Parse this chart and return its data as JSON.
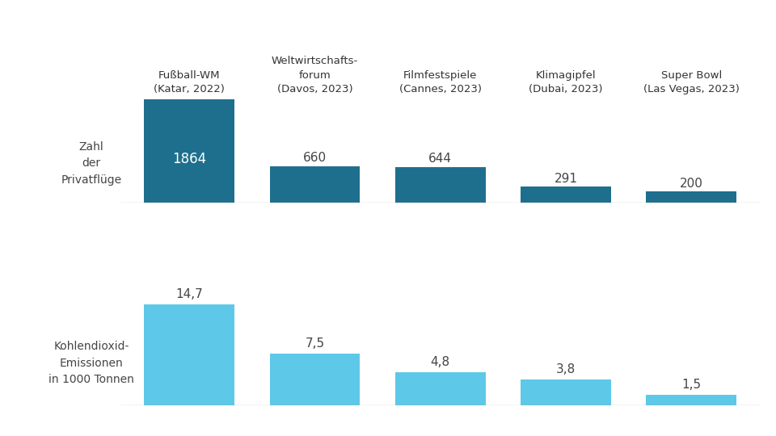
{
  "categories": [
    "Fußball-WM\n(Katar, 2022)",
    "Weltwirtschafts-\nforum\n(Davos, 2023)",
    "Filmfestspiele\n(Cannes, 2023)",
    "Klimagipfel\n(Dubai, 2023)",
    "Super Bowl\n(Las Vegas, 2023)"
  ],
  "top_values": [
    1864,
    660,
    644,
    291,
    200
  ],
  "bottom_values": [
    14.7,
    7.5,
    4.8,
    3.8,
    1.5
  ],
  "top_color": "#1e6f8e",
  "bottom_color": "#5ec8e8",
  "top_label": "Zahl\nder\nPrivatflüge",
  "bottom_label": "Kohlendioxid-\nEmissionen\nin 1000 Tonnen",
  "top_value_color_inside": "#ffffff",
  "top_value_color_outside": "#444444",
  "bottom_value_color": "#444444",
  "background_color": "#ffffff",
  "label_fontsize": 10,
  "value_fontsize": 11,
  "category_fontsize": 9.5,
  "bar_width": 0.72
}
